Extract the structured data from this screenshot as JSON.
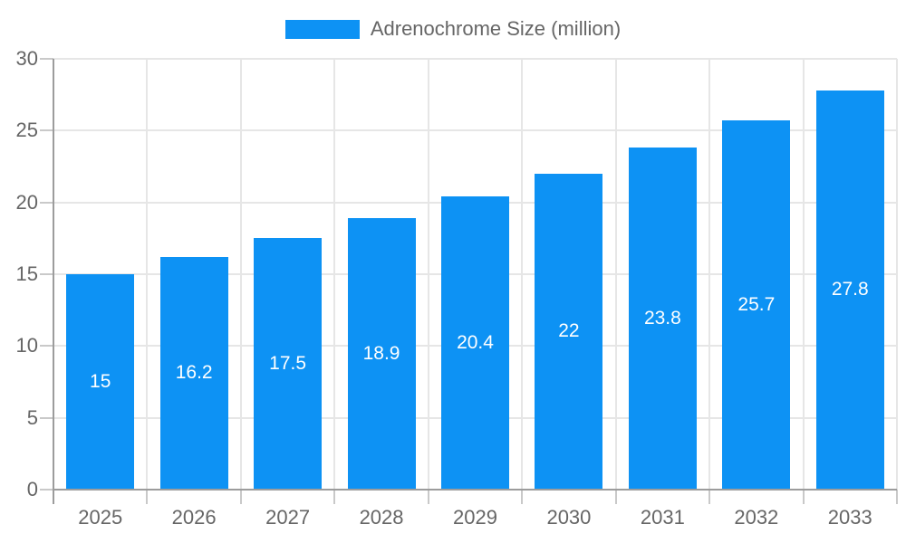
{
  "legend": {
    "label": "Adrenochrome Size (million)"
  },
  "chart_data": {
    "type": "bar",
    "title": "",
    "xlabel": "",
    "ylabel": "",
    "categories": [
      "2025",
      "2026",
      "2027",
      "2028",
      "2029",
      "2030",
      "2031",
      "2032",
      "2033"
    ],
    "series": [
      {
        "name": "Adrenochrome Size (million)",
        "values": [
          15,
          16.2,
          17.5,
          18.9,
          20.4,
          22,
          23.8,
          25.7,
          27.8
        ]
      }
    ],
    "value_labels": [
      "15",
      "16.2",
      "17.5",
      "18.9",
      "20.4",
      "22",
      "23.8",
      "25.7",
      "27.8"
    ],
    "ylim": [
      0,
      30
    ],
    "yticks": [
      0,
      5,
      10,
      15,
      20,
      25,
      30
    ],
    "grid": true,
    "legend_position": "top-center",
    "colors": {
      "bar": "#0d92f4",
      "bar_value_text": "#ffffff",
      "axis_text": "#666666",
      "gridline": "#e6e6e6",
      "tick": "#c9c9c9",
      "axis_line": "#9c9c9c",
      "background": "#ffffff"
    }
  }
}
